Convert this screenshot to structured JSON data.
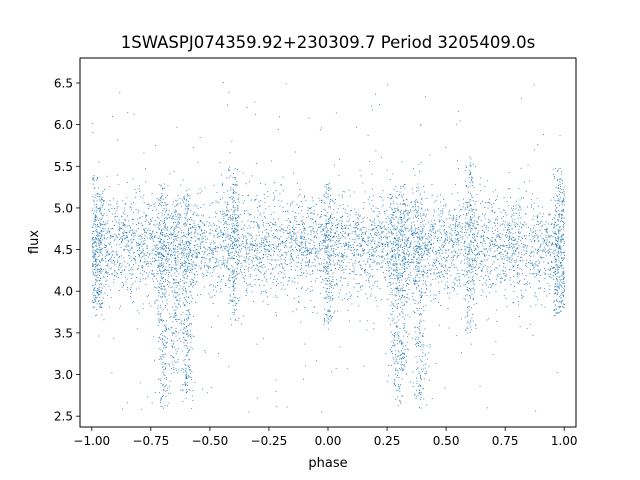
{
  "chart_data": {
    "type": "scatter",
    "title": "1SWASPJ074359.92+230309.7 Period 3205409.0s",
    "xlabel": "phase",
    "ylabel": "flux",
    "xlim": [
      -1.05,
      1.05
    ],
    "ylim": [
      2.37,
      6.8
    ],
    "x_ticks": [
      -1.0,
      -0.75,
      -0.5,
      -0.25,
      0.0,
      0.25,
      0.5,
      0.75,
      1.0
    ],
    "x_tick_labels": [
      "−1.00",
      "−0.75",
      "−0.50",
      "−0.25",
      "0.00",
      "0.25",
      "0.50",
      "0.75",
      "1.00"
    ],
    "y_ticks": [
      2.5,
      3.0,
      3.5,
      4.0,
      4.5,
      5.0,
      5.5,
      6.0,
      6.5
    ],
    "y_tick_labels": [
      "2.5",
      "3.0",
      "3.5",
      "4.0",
      "4.5",
      "5.0",
      "5.5",
      "6.0",
      "6.5"
    ],
    "grid": false,
    "legend": "none",
    "series_color": "#1f77b4",
    "baseline_flux": 4.55,
    "typical_scatter": 0.3,
    "phase_range": [
      -1.0,
      1.0
    ],
    "dip_phases": [
      -0.7,
      -0.6,
      0.3,
      0.4
    ],
    "dip_min_flux": 2.6,
    "clusters": [
      {
        "phase": -1.0,
        "flux_low": 3.7,
        "flux_high": 5.4
      },
      {
        "phase": -0.97,
        "flux_low": 3.8,
        "flux_high": 5.2
      },
      {
        "phase": -0.7,
        "flux_low": 2.7,
        "flux_high": 5.3
      },
      {
        "phase": -0.65,
        "flux_low": 3.0,
        "flux_high": 5.1
      },
      {
        "phase": -0.6,
        "flux_low": 2.8,
        "flux_high": 5.2
      },
      {
        "phase": -0.4,
        "flux_low": 3.6,
        "flux_high": 5.5
      },
      {
        "phase": 0.0,
        "flux_low": 3.6,
        "flux_high": 5.3
      },
      {
        "phase": 0.28,
        "flux_low": 2.8,
        "flux_high": 5.2
      },
      {
        "phase": 0.32,
        "flux_low": 3.0,
        "flux_high": 5.3
      },
      {
        "phase": 0.38,
        "flux_low": 2.7,
        "flux_high": 5.4
      },
      {
        "phase": 0.6,
        "flux_low": 3.5,
        "flux_high": 5.6
      },
      {
        "phase": 0.97,
        "flux_low": 3.7,
        "flux_high": 5.5
      },
      {
        "phase": 1.0,
        "flux_low": 3.8,
        "flux_high": 5.3
      }
    ]
  }
}
